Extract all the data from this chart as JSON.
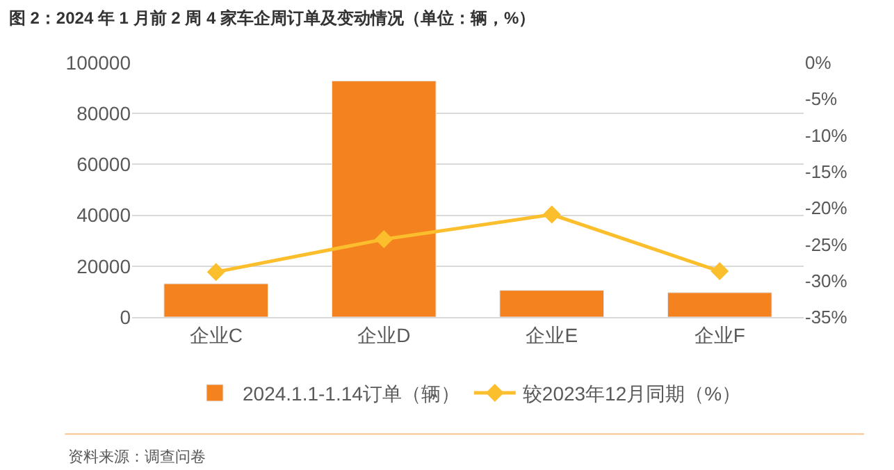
{
  "chart_data": {
    "type": "bar",
    "title": "图 2：2024 年 1 月前 2 周 4 家车企周订单及变动情况（单位：辆，%）",
    "categories": [
      "企业C",
      "企业D",
      "企业E",
      "企业F"
    ],
    "series": [
      {
        "name": "2024.1.1-1.14订单（辆）",
        "color": "#f4821f",
        "values": [
          13100,
          92800,
          10500,
          9600
        ]
      },
      {
        "name": "较2023年12月同期（%）",
        "type": "line",
        "axis": "y2",
        "color": "#fbbf2d",
        "marker": "diamond",
        "values": [
          -28.8,
          -24.3,
          -20.9,
          -28.7
        ]
      }
    ],
    "ylim": [
      0,
      100000
    ],
    "yticks": [
      0,
      20000,
      40000,
      60000,
      80000,
      100000
    ],
    "y2lim": [
      -35,
      0
    ],
    "y2ticks": [
      {
        "value": 0,
        "label": "0%"
      },
      {
        "value": -5,
        "label": "-5%"
      },
      {
        "value": -10,
        "label": "-10%"
      },
      {
        "value": -15,
        "label": "-15%"
      },
      {
        "value": -20,
        "label": "-20%"
      },
      {
        "value": -25,
        "label": "-25%"
      },
      {
        "value": -30,
        "label": "-30%"
      },
      {
        "value": -35,
        "label": "-35%"
      }
    ],
    "grid": "y",
    "legend": "bottom",
    "annotations": [
      "资料来源：调查问卷"
    ]
  }
}
